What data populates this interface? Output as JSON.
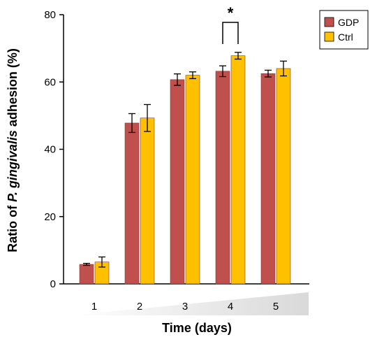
{
  "chart_data": {
    "type": "bar",
    "categories": [
      "1",
      "2",
      "3",
      "4",
      "5"
    ],
    "series": [
      {
        "name": "GDP",
        "values": [
          5.8,
          47.8,
          60.7,
          63.2,
          62.5
        ],
        "errors": [
          0.3,
          2.8,
          1.7,
          1.6,
          1.0
        ],
        "color": "#c0504d"
      },
      {
        "name": "Ctrl",
        "values": [
          6.5,
          49.3,
          62.0,
          67.8,
          64.0
        ],
        "errors": [
          1.5,
          4.0,
          1.0,
          1.0,
          2.2
        ],
        "color": "#ffc000"
      }
    ],
    "xlabel": "Time (days)",
    "ylabel": {
      "before": "Ratio of ",
      "italic": "P. gingivalis",
      "after": " adhesion (%)"
    },
    "yticks": [
      0,
      20,
      40,
      60,
      80
    ],
    "ylim": [
      0,
      80
    ],
    "legend": "top-right",
    "grid": false,
    "annotation": {
      "text": "*",
      "category": "4"
    }
  }
}
